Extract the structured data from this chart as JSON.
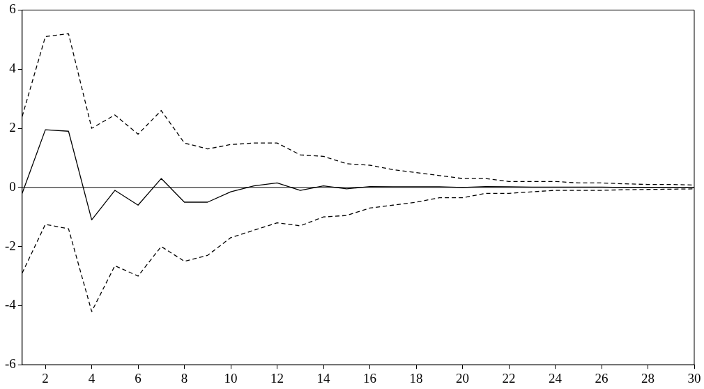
{
  "chart_data": {
    "type": "line",
    "x": [
      1,
      2,
      3,
      4,
      5,
      6,
      7,
      8,
      9,
      10,
      11,
      12,
      13,
      14,
      15,
      16,
      17,
      18,
      19,
      20,
      21,
      22,
      23,
      24,
      25,
      26,
      27,
      28,
      29,
      30
    ],
    "series": [
      {
        "color": "#000000",
        "line_style": "solid",
        "values": [
          -0.2,
          1.95,
          1.9,
          -1.1,
          -0.1,
          -0.6,
          0.3,
          -0.5,
          -0.5,
          -0.15,
          0.05,
          0.15,
          -0.1,
          0.05,
          -0.05,
          0.03,
          0.02,
          0.02,
          0.02,
          0,
          0.03,
          0.02,
          0.01,
          0.01,
          0.01,
          0.01,
          0,
          0,
          0,
          0
        ]
      },
      {
        "color": "#000000",
        "line_style": "dashed",
        "values": [
          2.4,
          5.1,
          5.2,
          2.0,
          2.45,
          1.8,
          2.6,
          1.5,
          1.3,
          1.45,
          1.5,
          1.5,
          1.1,
          1.05,
          0.8,
          0.75,
          0.6,
          0.5,
          0.4,
          0.3,
          0.3,
          0.2,
          0.2,
          0.2,
          0.15,
          0.15,
          0.12,
          0.1,
          0.1,
          0.08
        ]
      },
      {
        "color": "#000000",
        "line_style": "dashed",
        "values": [
          -2.9,
          -1.25,
          -1.4,
          -4.2,
          -2.65,
          -3.0,
          -2.0,
          -2.5,
          -2.3,
          -1.7,
          -1.45,
          -1.2,
          -1.3,
          -1.0,
          -0.95,
          -0.7,
          -0.6,
          -0.5,
          -0.35,
          -0.35,
          -0.2,
          -0.2,
          -0.15,
          -0.1,
          -0.1,
          -0.1,
          -0.08,
          -0.07,
          -0.06,
          -0.05
        ]
      }
    ],
    "xlim": [
      1,
      30
    ],
    "xticks": [
      2,
      4,
      6,
      8,
      10,
      12,
      14,
      16,
      18,
      20,
      22,
      24,
      26,
      28,
      30
    ],
    "ylim": [
      -6,
      6
    ],
    "yticks": [
      -6,
      -4,
      -2,
      0,
      2,
      4,
      6
    ],
    "ref_lines": [
      {
        "axis": "y",
        "value": 0,
        "color": "#000000"
      }
    ],
    "grid": false,
    "legend": false,
    "marker": "none"
  }
}
